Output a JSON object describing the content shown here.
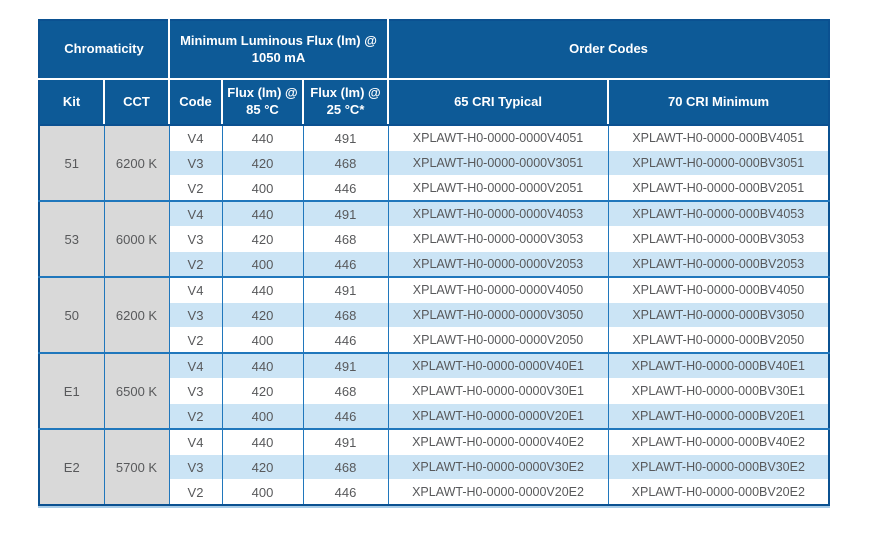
{
  "colors": {
    "header_bg": "#0d5a97",
    "outer_border": "#0b5191",
    "grid_blue": "#2077bc",
    "stripe_blue": "#cbe4f5",
    "kit_gray": "#d9d9d9",
    "body_text": "#58595b",
    "header_text": "#ffffff"
  },
  "table": {
    "header": {
      "chromaticity": "Chromaticity",
      "flux_group": "Minimum Luminous Flux (lm) @ 1050 mA",
      "order_codes": "Order Codes",
      "kit": "Kit",
      "cct": "CCT",
      "code": "Code",
      "flux_85": "Flux (lm) @ 85 °C",
      "flux_25": "Flux (lm) @ 25 °C*",
      "cri_65": "65 CRI Typical",
      "cri_70": "70 CRI Minimum"
    },
    "groups": [
      {
        "kit": "51",
        "cct": "6200 K",
        "rows": [
          {
            "code": "V4",
            "flux_85": "440",
            "flux_25": "491",
            "cri_65": "XPLAWT-H0-0000-0000V4051",
            "cri_70": "XPLAWT-H0-0000-000BV4051"
          },
          {
            "code": "V3",
            "flux_85": "420",
            "flux_25": "468",
            "cri_65": "XPLAWT-H0-0000-0000V3051",
            "cri_70": "XPLAWT-H0-0000-000BV3051"
          },
          {
            "code": "V2",
            "flux_85": "400",
            "flux_25": "446",
            "cri_65": "XPLAWT-H0-0000-0000V2051",
            "cri_70": "XPLAWT-H0-0000-000BV2051"
          }
        ]
      },
      {
        "kit": "53",
        "cct": "6000 K",
        "rows": [
          {
            "code": "V4",
            "flux_85": "440",
            "flux_25": "491",
            "cri_65": "XPLAWT-H0-0000-0000V4053",
            "cri_70": "XPLAWT-H0-0000-000BV4053"
          },
          {
            "code": "V3",
            "flux_85": "420",
            "flux_25": "468",
            "cri_65": "XPLAWT-H0-0000-0000V3053",
            "cri_70": "XPLAWT-H0-0000-000BV3053"
          },
          {
            "code": "V2",
            "flux_85": "400",
            "flux_25": "446",
            "cri_65": "XPLAWT-H0-0000-0000V2053",
            "cri_70": "XPLAWT-H0-0000-000BV2053"
          }
        ]
      },
      {
        "kit": "50",
        "cct": "6200 K",
        "rows": [
          {
            "code": "V4",
            "flux_85": "440",
            "flux_25": "491",
            "cri_65": "XPLAWT-H0-0000-0000V4050",
            "cri_70": "XPLAWT-H0-0000-000BV4050"
          },
          {
            "code": "V3",
            "flux_85": "420",
            "flux_25": "468",
            "cri_65": "XPLAWT-H0-0000-0000V3050",
            "cri_70": "XPLAWT-H0-0000-000BV3050"
          },
          {
            "code": "V2",
            "flux_85": "400",
            "flux_25": "446",
            "cri_65": "XPLAWT-H0-0000-0000V2050",
            "cri_70": "XPLAWT-H0-0000-000BV2050"
          }
        ]
      },
      {
        "kit": "E1",
        "cct": "6500 K",
        "rows": [
          {
            "code": "V4",
            "flux_85": "440",
            "flux_25": "491",
            "cri_65": "XPLAWT-H0-0000-0000V40E1",
            "cri_70": "XPLAWT-H0-0000-000BV40E1"
          },
          {
            "code": "V3",
            "flux_85": "420",
            "flux_25": "468",
            "cri_65": "XPLAWT-H0-0000-0000V30E1",
            "cri_70": "XPLAWT-H0-0000-000BV30E1"
          },
          {
            "code": "V2",
            "flux_85": "400",
            "flux_25": "446",
            "cri_65": "XPLAWT-H0-0000-0000V20E1",
            "cri_70": "XPLAWT-H0-0000-000BV20E1"
          }
        ]
      },
      {
        "kit": "E2",
        "cct": "5700 K",
        "rows": [
          {
            "code": "V4",
            "flux_85": "440",
            "flux_25": "491",
            "cri_65": "XPLAWT-H0-0000-0000V40E2",
            "cri_70": "XPLAWT-H0-0000-000BV40E2"
          },
          {
            "code": "V3",
            "flux_85": "420",
            "flux_25": "468",
            "cri_65": "XPLAWT-H0-0000-0000V30E2",
            "cri_70": "XPLAWT-H0-0000-000BV30E2"
          },
          {
            "code": "V2",
            "flux_85": "400",
            "flux_25": "446",
            "cri_65": "XPLAWT-H0-0000-0000V20E2",
            "cri_70": "XPLAWT-H0-0000-000BV20E2"
          }
        ]
      }
    ]
  }
}
